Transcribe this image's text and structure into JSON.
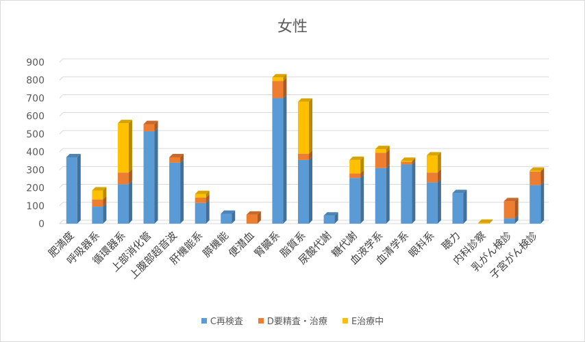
{
  "chart_data": {
    "type": "bar",
    "stacked": true,
    "title": "女性",
    "ylim": [
      0,
      900
    ],
    "yticks": [
      0,
      100,
      200,
      300,
      400,
      500,
      600,
      700,
      800,
      900
    ],
    "grid": true,
    "legend_position": "bottom",
    "categories": [
      "肥満度",
      "呼吸器系",
      "循環器系",
      "上部消化管",
      "上腹部超音波",
      "肝機能系",
      "膵機能",
      "便潜血",
      "腎臓系",
      "脂質系",
      "尿酸代謝",
      "糖代謝",
      "血液学系",
      "血清学系",
      "眼科系",
      "聴力",
      "内科診察",
      "乳がん検診",
      "子宮がん検診"
    ],
    "series": [
      {
        "name": "C再検査",
        "color": "#5b9bd5",
        "values": [
          370,
          95,
          220,
          515,
          340,
          115,
          55,
          0,
          700,
          355,
          45,
          255,
          310,
          330,
          230,
          170,
          0,
          30,
          215
        ]
      },
      {
        "name": "D要精査・治療",
        "color": "#ed7d31",
        "values": [
          0,
          40,
          65,
          40,
          30,
          30,
          0,
          50,
          95,
          35,
          0,
          25,
          85,
          15,
          55,
          0,
          0,
          95,
          75
        ]
      },
      {
        "name": "E治療中",
        "color": "#ffc000",
        "values": [
          0,
          50,
          275,
          0,
          0,
          20,
          0,
          0,
          20,
          290,
          0,
          75,
          20,
          5,
          95,
          0,
          5,
          0,
          5
        ]
      }
    ]
  }
}
